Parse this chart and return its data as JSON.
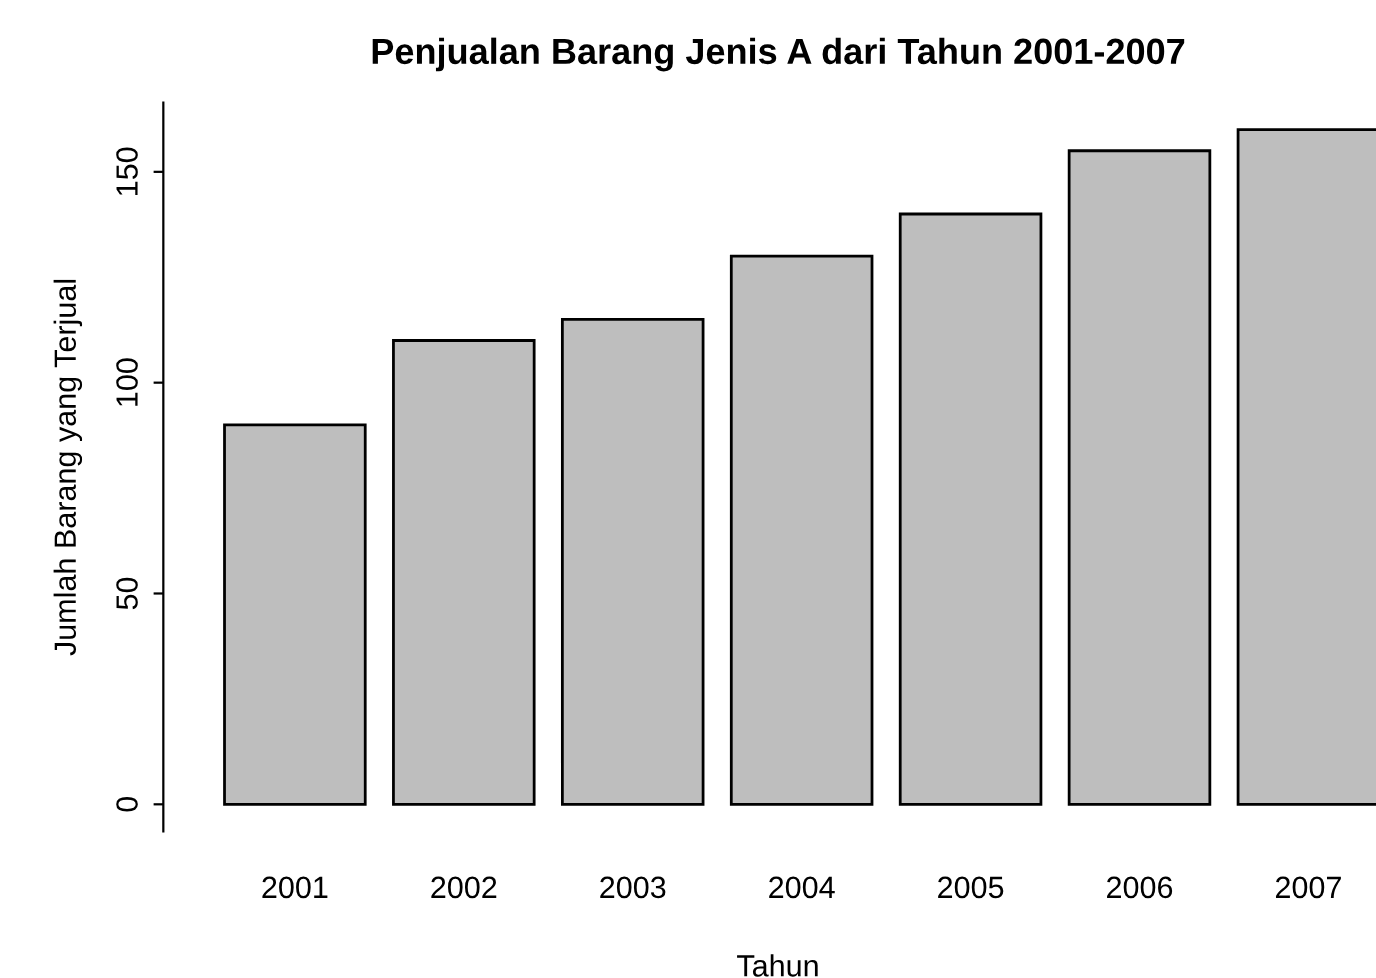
{
  "chart_data": {
    "type": "bar",
    "title": "Penjualan Barang Jenis A dari Tahun 2001-2007",
    "xlabel": "Tahun",
    "ylabel": "Jumlah Barang yang Terjual",
    "categories": [
      "2001",
      "2002",
      "2003",
      "2004",
      "2005",
      "2006",
      "2007"
    ],
    "values": [
      90,
      110,
      115,
      130,
      140,
      155,
      160
    ],
    "color": "#bebebe",
    "ylim": [
      -6.4,
      166.4
    ],
    "yticks": [
      0,
      50,
      100,
      150
    ],
    "grid": false,
    "legend": false
  }
}
